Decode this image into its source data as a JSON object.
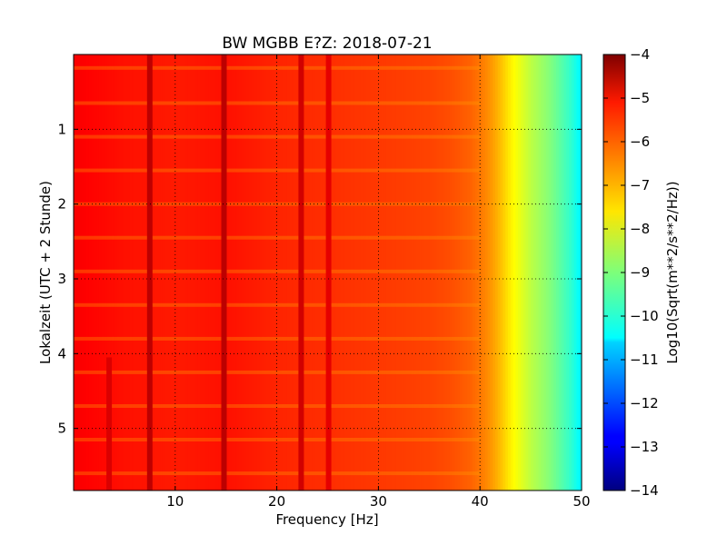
{
  "chart_data": {
    "type": "heatmap",
    "title": "BW MGBB E?Z: 2018-07-21",
    "xlabel": "Frequency [Hz]",
    "ylabel": "Lokalzeit (UTC + 2 Stunde)",
    "xlim": [
      0,
      50
    ],
    "ylim": [
      0,
      5.83
    ],
    "y_inverted": true,
    "grid": true,
    "x_ticks": [
      10,
      20,
      30,
      40,
      50
    ],
    "y_ticks": [
      1,
      2,
      3,
      4,
      5
    ],
    "colorbar": {
      "label": "Log10(Sqrt(m**2/s**2/Hz))",
      "min": -14,
      "max": -4,
      "ticks": [
        -4,
        -5,
        -6,
        -7,
        -8,
        -9,
        -10,
        -11,
        -12,
        -13,
        -14
      ],
      "colormap": "jet"
    },
    "spectral_profile": {
      "frequency_hz": [
        0,
        5,
        10,
        15,
        20,
        25,
        30,
        35,
        37,
        39,
        40,
        41,
        42,
        43,
        44,
        45,
        46,
        47,
        48,
        49,
        50
      ],
      "level": [
        -5.2,
        -5.4,
        -5.5,
        -5.4,
        -5.6,
        -5.7,
        -5.8,
        -5.9,
        -6.0,
        -6.2,
        -6.4,
        -6.7,
        -7.1,
        -7.6,
        -8.0,
        -8.4,
        -8.7,
        -9.0,
        -9.4,
        -9.8,
        -10.4
      ]
    },
    "vertical_lines": [
      {
        "frequency_hz": 7.5,
        "level": -4.6,
        "y_start": 0,
        "y_end": 5.83
      },
      {
        "frequency_hz": 14.8,
        "level": -4.6,
        "y_start": 0,
        "y_end": 5.83
      },
      {
        "frequency_hz": 22.4,
        "level": -4.8,
        "y_start": 0,
        "y_end": 5.83
      },
      {
        "frequency_hz": 25.1,
        "level": -5.0,
        "y_start": 0,
        "y_end": 5.83
      },
      {
        "frequency_hz": 3.5,
        "level": -4.9,
        "y_start": 4.05,
        "y_end": 5.83
      }
    ],
    "horizontal_bands": [
      0.18,
      0.65,
      1.1,
      1.55,
      2.0,
      2.45,
      2.9,
      3.35,
      3.8,
      4.25,
      4.7,
      5.15,
      5.6
    ]
  }
}
